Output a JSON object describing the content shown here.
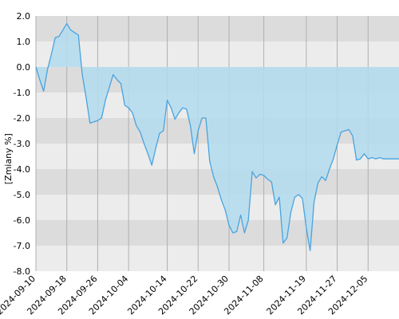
{
  "chart_data": {
    "type": "area",
    "title": "",
    "xlabel": "",
    "ylabel": "[Zmiany %]",
    "ylim": [
      -8.0,
      2.0
    ],
    "xlim": [
      "2024-09-10",
      "2024-12-13"
    ],
    "grid": true,
    "y_ticks": [
      "2.0",
      "1.0",
      "0.0",
      "-1.0",
      "-2.0",
      "-3.0",
      "-4.0",
      "-5.0",
      "-6.0",
      "-7.0",
      "-8.0"
    ],
    "x_ticks": [
      "2024-09-10",
      "2024-09-18",
      "2024-09-26",
      "2024-10-04",
      "2024-10-14",
      "2024-10-22",
      "2024-10-30",
      "2024-11-08",
      "2024-11-19",
      "2024-11-27",
      "2024-12-05"
    ],
    "colors": {
      "line": "#4aa3df",
      "fill": "#b3dcee",
      "band_dark": "#dcdcdc",
      "band_light": "#ececec",
      "vgrid": "#b0b0b0"
    },
    "series": [
      {
        "x": [
          "2024-09-10",
          "2024-09-11",
          "2024-09-12",
          "2024-09-13",
          "2024-09-14",
          "2024-09-15",
          "2024-09-16",
          "2024-09-17",
          "2024-09-18",
          "2024-09-19",
          "2024-09-20",
          "2024-09-21",
          "2024-09-22",
          "2024-09-23",
          "2024-09-24",
          "2024-09-25",
          "2024-09-26",
          "2024-09-27",
          "2024-09-28",
          "2024-09-29",
          "2024-09-30",
          "2024-10-01",
          "2024-10-02",
          "2024-10-03",
          "2024-10-04",
          "2024-10-05",
          "2024-10-06",
          "2024-10-07",
          "2024-10-08",
          "2024-10-09",
          "2024-10-10",
          "2024-10-11",
          "2024-10-12",
          "2024-10-13",
          "2024-10-14",
          "2024-10-15",
          "2024-10-16",
          "2024-10-17",
          "2024-10-18",
          "2024-10-19",
          "2024-10-20",
          "2024-10-21",
          "2024-10-22",
          "2024-10-23",
          "2024-10-24",
          "2024-10-25",
          "2024-10-26",
          "2024-10-27",
          "2024-10-28",
          "2024-10-29",
          "2024-10-30",
          "2024-10-31",
          "2024-11-01",
          "2024-11-02",
          "2024-11-03",
          "2024-11-04",
          "2024-11-05",
          "2024-11-06",
          "2024-11-07",
          "2024-11-08",
          "2024-11-09",
          "2024-11-10",
          "2024-11-11",
          "2024-11-12",
          "2024-11-13",
          "2024-11-14",
          "2024-11-15",
          "2024-11-16",
          "2024-11-17",
          "2024-11-18",
          "2024-11-19",
          "2024-11-20",
          "2024-11-21",
          "2024-11-22",
          "2024-11-23",
          "2024-11-24",
          "2024-11-25",
          "2024-11-26",
          "2024-11-27",
          "2024-11-28",
          "2024-11-29",
          "2024-11-30",
          "2024-12-01",
          "2024-12-02",
          "2024-12-03",
          "2024-12-04",
          "2024-12-05",
          "2024-12-06",
          "2024-12-07",
          "2024-12-08",
          "2024-12-09",
          "2024-12-10",
          "2024-12-11",
          "2024-12-12",
          "2024-12-13"
        ],
        "values": [
          0.0,
          -0.5,
          -0.95,
          -0.1,
          0.5,
          1.15,
          1.2,
          1.45,
          1.7,
          1.45,
          1.35,
          1.25,
          -0.3,
          -1.2,
          -2.2,
          -2.15,
          -2.1,
          -2.0,
          -1.3,
          -0.8,
          -0.3,
          -0.5,
          -0.65,
          -1.5,
          -1.6,
          -1.8,
          -2.3,
          -2.55,
          -3.0,
          -3.4,
          -3.85,
          -3.2,
          -2.6,
          -2.5,
          -1.3,
          -1.6,
          -2.05,
          -1.8,
          -1.6,
          -1.65,
          -2.3,
          -3.4,
          -2.5,
          -2.0,
          -2.0,
          -3.7,
          -4.3,
          -4.7,
          -5.2,
          -5.6,
          -6.2,
          -6.5,
          -6.45,
          -5.8,
          -6.5,
          -6.0,
          -4.1,
          -4.35,
          -4.2,
          -4.25,
          -4.4,
          -4.5,
          -5.4,
          -5.1,
          -6.9,
          -6.7,
          -5.7,
          -5.1,
          -5.0,
          -5.15,
          -6.3,
          -7.2,
          -5.3,
          -4.55,
          -4.3,
          -4.45,
          -4.0,
          -3.6,
          -3.05,
          -2.55,
          -2.5,
          -2.45,
          -2.7,
          -3.65,
          -3.6,
          -3.4,
          -3.6,
          -3.55,
          -3.6,
          -3.55,
          -3.6,
          -3.6,
          -3.6,
          -3.6,
          -3.6
        ]
      }
    ]
  }
}
